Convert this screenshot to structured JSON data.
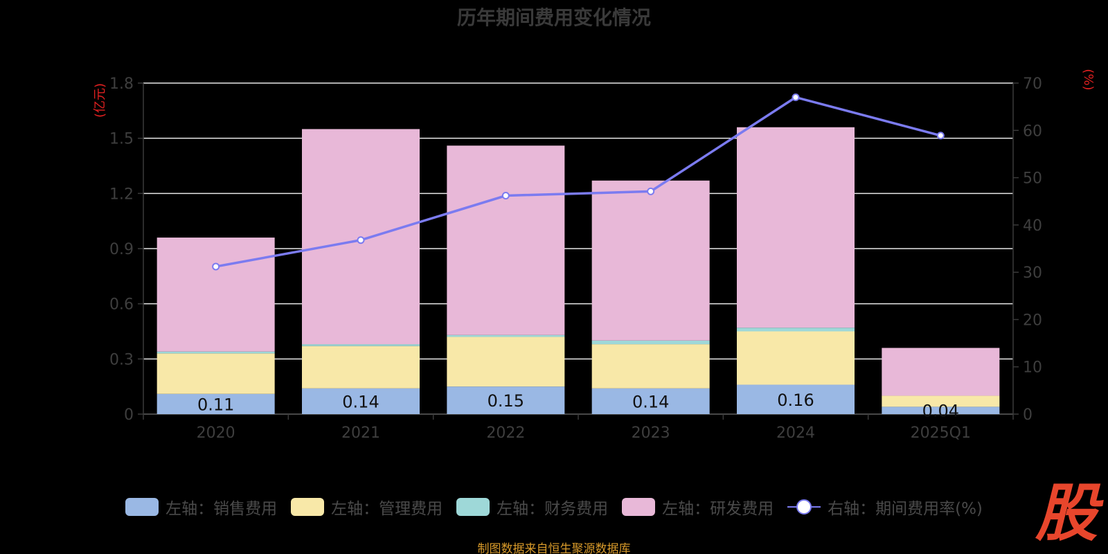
{
  "chart_data": {
    "type": "bar",
    "title": "历年期间费用变化情况",
    "categories": [
      "2020",
      "2021",
      "2022",
      "2023",
      "2024",
      "2025Q1"
    ],
    "left_axis": {
      "unit_label": "(亿元)",
      "ylim": [
        0,
        1.8
      ],
      "ticks": [
        "0",
        "0.3",
        "0.6",
        "0.9",
        "1.2",
        "1.5",
        "1.8"
      ]
    },
    "right_axis": {
      "unit_label": "(%)",
      "ylim": [
        0,
        70
      ],
      "ticks": [
        "0",
        "10",
        "20",
        "30",
        "40",
        "50",
        "60",
        "70"
      ]
    },
    "stacked": true,
    "series": [
      {
        "name": "左轴：销售费用",
        "axis": "left",
        "color": "#9ab8e4",
        "values": [
          0.11,
          0.14,
          0.15,
          0.14,
          0.16,
          0.04
        ],
        "data_labels": [
          "0.11",
          "0.14",
          "0.15",
          "0.14",
          "0.16",
          "0.04"
        ]
      },
      {
        "name": "左轴：管理费用",
        "axis": "left",
        "color": "#f8e8a8",
        "values": [
          0.22,
          0.23,
          0.27,
          0.24,
          0.29,
          0.06
        ]
      },
      {
        "name": "左轴：财务费用",
        "axis": "left",
        "color": "#9ed8d8",
        "values": [
          0.01,
          0.01,
          0.01,
          0.02,
          0.02,
          0.0
        ]
      },
      {
        "name": "左轴：研发费用",
        "axis": "left",
        "color": "#e8b8d8",
        "values": [
          0.62,
          1.17,
          1.03,
          0.87,
          1.09,
          0.26
        ]
      },
      {
        "name": "右轴：期间费用率(%)",
        "axis": "right",
        "type": "line",
        "color": "#7b7bf0",
        "values": [
          31.2,
          36.8,
          46.2,
          47.1,
          67.0,
          58.9
        ]
      }
    ],
    "grid": true,
    "legend_position": "bottom"
  },
  "source_note": "制图数据来自恒生聚源数据库",
  "logo_text": "股",
  "colors": {
    "background": "#000000",
    "grid": "#e8e8e8",
    "axis_text": "#3e3e3e",
    "unit_text": "#e02020",
    "label_text": "#111111",
    "source_text": "#d89a2a",
    "logo": "#e8462c"
  }
}
